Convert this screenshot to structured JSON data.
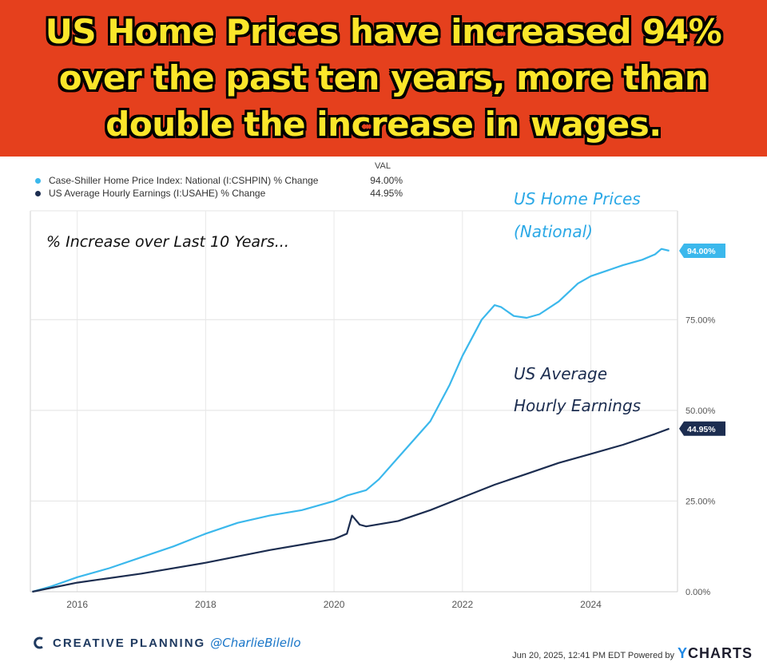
{
  "headline": "US Home Prices have increased 94% over the past ten years, more than double the increase in wages.",
  "legend": {
    "header": "VAL",
    "items": [
      {
        "label": "Case-Shiller Home Price Index: National (I:CSHPIN) % Change",
        "value": "94.00%",
        "color": "#3bb8ec"
      },
      {
        "label": "US Average Hourly Earnings (I:USAHE) % Change",
        "value": "44.95%",
        "color": "#1c2d50"
      }
    ]
  },
  "footer": {
    "brand": "CREATIVE PLANNING",
    "handle": "@CharlieBilello",
    "timestamp": "Jun 20, 2025, 12:41 PM EDT Powered by",
    "ycharts_y": "Y",
    "ycharts_rest": "CHARTS"
  },
  "chart_data": {
    "type": "line",
    "annotations": {
      "title": "% Increase over Last 10 Years...",
      "home_label": [
        "US Home Prices",
        "(National)"
      ],
      "wage_label": [
        "US Average",
        "Hourly Earnings"
      ]
    },
    "x_ticks": [
      "2016",
      "2018",
      "2020",
      "2022",
      "2024"
    ],
    "x_tick_values": [
      2016,
      2018,
      2020,
      2022,
      2024
    ],
    "y_ticks": [
      "0.00%",
      "25.00%",
      "50.00%",
      "75.00%"
    ],
    "y_tick_values": [
      0,
      25,
      50,
      75
    ],
    "xlim": [
      2015.27,
      2025.35
    ],
    "ylim": [
      0,
      105
    ],
    "grid": true,
    "series": [
      {
        "name": "Case-Shiller Home Price Index: National (I:CSHPIN) % Change",
        "color": "#3bb8ec",
        "end_label": "94.00%",
        "points": [
          [
            2015.3,
            0
          ],
          [
            2015.6,
            1.5
          ],
          [
            2016.0,
            4
          ],
          [
            2016.5,
            6.5
          ],
          [
            2017.0,
            9.5
          ],
          [
            2017.5,
            12.5
          ],
          [
            2018.0,
            16
          ],
          [
            2018.5,
            19
          ],
          [
            2019.0,
            21
          ],
          [
            2019.5,
            22.5
          ],
          [
            2020.0,
            25
          ],
          [
            2020.2,
            26.5
          ],
          [
            2020.5,
            28
          ],
          [
            2020.7,
            31
          ],
          [
            2021.0,
            37
          ],
          [
            2021.5,
            47
          ],
          [
            2021.8,
            57
          ],
          [
            2022.0,
            65
          ],
          [
            2022.3,
            75
          ],
          [
            2022.5,
            79
          ],
          [
            2022.6,
            78.5
          ],
          [
            2022.8,
            76
          ],
          [
            2023.0,
            75.5
          ],
          [
            2023.2,
            76.5
          ],
          [
            2023.5,
            80
          ],
          [
            2023.8,
            85
          ],
          [
            2024.0,
            87
          ],
          [
            2024.5,
            90
          ],
          [
            2024.8,
            91.5
          ],
          [
            2025.0,
            93
          ],
          [
            2025.1,
            94.5
          ],
          [
            2025.22,
            94
          ]
        ]
      },
      {
        "name": "US Average Hourly Earnings (I:USAHE) % Change",
        "color": "#1c2d50",
        "end_label": "44.95%",
        "points": [
          [
            2015.3,
            0
          ],
          [
            2016.0,
            2.5
          ],
          [
            2017.0,
            5
          ],
          [
            2018.0,
            8
          ],
          [
            2019.0,
            11.5
          ],
          [
            2020.0,
            14.5
          ],
          [
            2020.2,
            16
          ],
          [
            2020.28,
            21
          ],
          [
            2020.4,
            18.5
          ],
          [
            2020.5,
            18
          ],
          [
            2021.0,
            19.5
          ],
          [
            2021.5,
            22.5
          ],
          [
            2022.0,
            26
          ],
          [
            2022.5,
            29.5
          ],
          [
            2023.0,
            32.5
          ],
          [
            2023.5,
            35.5
          ],
          [
            2024.0,
            38
          ],
          [
            2024.5,
            40.5
          ],
          [
            2025.0,
            43.5
          ],
          [
            2025.22,
            44.95
          ]
        ]
      }
    ]
  }
}
